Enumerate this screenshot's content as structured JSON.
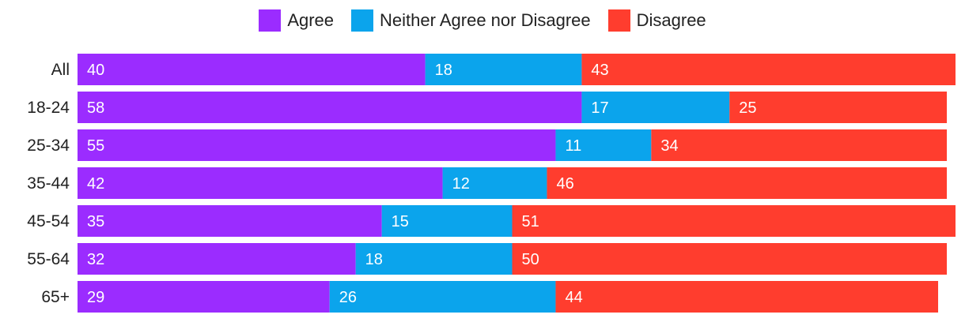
{
  "legend": {
    "agree": "Agree",
    "neither": "Neither Agree nor Disagree",
    "disagree": "Disagree"
  },
  "colors": {
    "agree": "#9b2cff",
    "neither": "#0ba4ec",
    "disagree": "#ff3d2e"
  },
  "chart_data": {
    "type": "bar",
    "orientation": "horizontal",
    "stacked": true,
    "title": "",
    "xlabel": "",
    "ylabel": "",
    "xlim": [
      0,
      101
    ],
    "grid": false,
    "legend_position": "top-center",
    "categories": [
      "All",
      "18-24",
      "25-34",
      "35-44",
      "45-54",
      "55-64",
      "65+"
    ],
    "series": [
      {
        "name": "Agree",
        "key": "agree",
        "values": [
          40,
          58,
          55,
          42,
          35,
          32,
          29
        ]
      },
      {
        "name": "Neither Agree nor Disagree",
        "key": "neither",
        "values": [
          18,
          17,
          11,
          12,
          15,
          18,
          26
        ]
      },
      {
        "name": "Disagree",
        "key": "disagree",
        "values": [
          43,
          25,
          34,
          46,
          51,
          50,
          44
        ]
      }
    ]
  }
}
